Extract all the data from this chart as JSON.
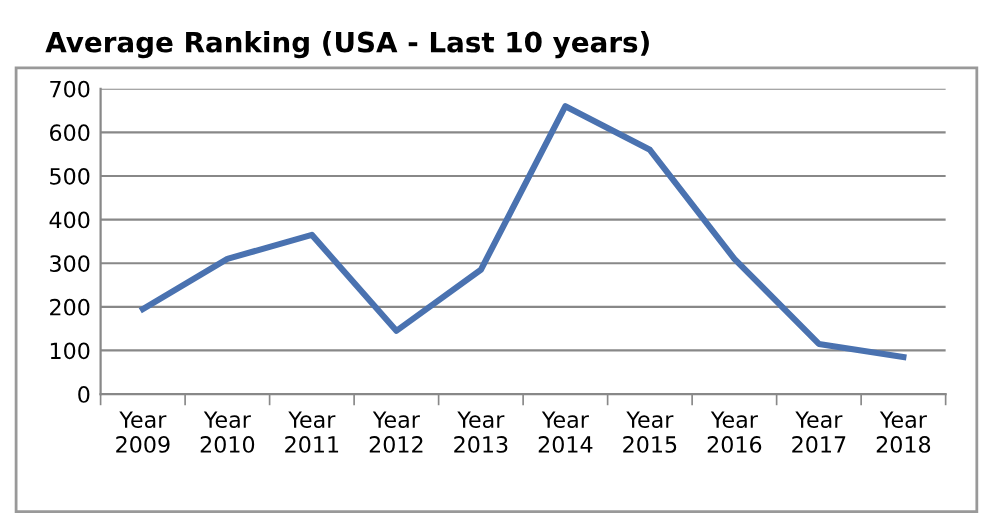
{
  "chart_data": {
    "type": "line",
    "title": "Average Ranking (USA - Last 10 years)",
    "categories": [
      "Year\n2009",
      "Year\n2010",
      "Year\n2011",
      "Year\n2012",
      "Year\n2013",
      "Year\n2014",
      "Year\n2015",
      "Year\n2016",
      "Year\n2017",
      "Year\n2018"
    ],
    "series": [
      {
        "color": "#4a72b0",
        "values": [
          195,
          310,
          365,
          145,
          285,
          660,
          560,
          310,
          115,
          85
        ]
      }
    ],
    "ylim": [
      0,
      700
    ],
    "yticks": [
      0,
      100,
      200,
      300,
      400,
      500,
      600,
      700
    ],
    "grid": "y",
    "legend": false,
    "marker": "none",
    "line_style": "solid"
  }
}
